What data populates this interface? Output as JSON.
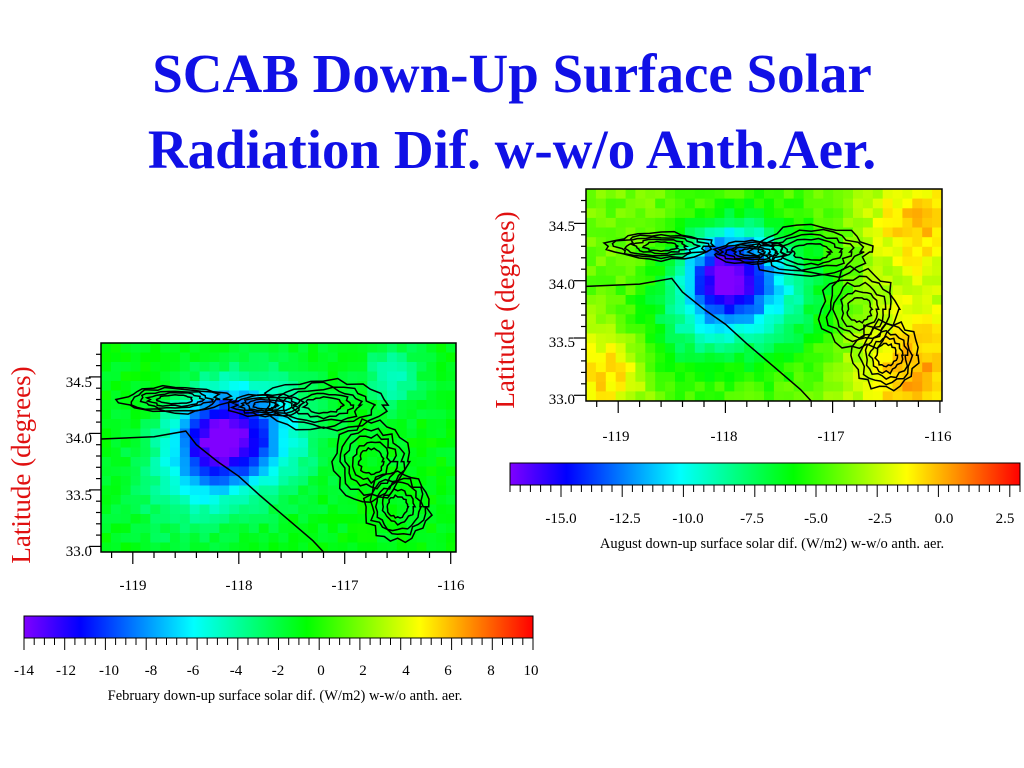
{
  "slide": {
    "title_line1": "SCAB Down-Up Surface Solar",
    "title_line2": "Radiation Dif. w-w/o Anth.Aer."
  },
  "chart_data": [
    {
      "type": "heatmap",
      "name": "february-map",
      "ylabel": "Latitude (degrees)",
      "xlabel": "",
      "xlim": [
        -119.3,
        -115.95
      ],
      "ylim": [
        32.95,
        34.8
      ],
      "x_ticks": [
        -119,
        -118,
        -117,
        -116
      ],
      "x_tick_labels": [
        "-119",
        "-118",
        "-117",
        "-116"
      ],
      "y_ticks": [
        33.0,
        33.5,
        34.0,
        34.5
      ],
      "y_tick_labels": [
        "33.0",
        "33.5",
        "34.0",
        "34.5"
      ],
      "overlay": "terrain contour lines",
      "colorbar": {
        "label": "February down-up surface solar dif. (W/m2) w-w/o anth. aer.",
        "range": [
          -14,
          10
        ],
        "ticks": [
          -14,
          -12,
          -10,
          -8,
          -6,
          -4,
          -2,
          0,
          2,
          4,
          6,
          8,
          10
        ],
        "tick_labels": [
          "-14",
          "-12",
          "-10",
          "-8",
          "-6",
          "-4",
          "-2",
          "0",
          "2",
          "4",
          "6",
          "8",
          "10"
        ]
      },
      "field": {
        "background": -1,
        "features": [
          {
            "lon": -118.2,
            "lat": 33.95,
            "value": -11,
            "radius": 0.4
          },
          {
            "lon": -117.8,
            "lat": 34.0,
            "value": -7,
            "radius": 0.5
          },
          {
            "lon": -118.5,
            "lat": 33.55,
            "value": -4,
            "radius": 0.5
          },
          {
            "lon": -116.55,
            "lat": 34.5,
            "value": -5,
            "radius": 0.25
          }
        ]
      }
    },
    {
      "type": "heatmap",
      "name": "august-map",
      "ylabel": "Latitude (degrees)",
      "xlabel": "",
      "xlim": [
        -119.3,
        -115.98
      ],
      "ylim": [
        32.95,
        34.8
      ],
      "x_ticks": [
        -119,
        -118,
        -117,
        -116
      ],
      "x_tick_labels": [
        "-119",
        "-118",
        "-117",
        "-116"
      ],
      "y_ticks": [
        33.0,
        33.5,
        34.0,
        34.5
      ],
      "y_tick_labels": [
        "33.0",
        "33.5",
        "34.0",
        "34.5"
      ],
      "overlay": "terrain contour lines",
      "colorbar": {
        "label": "August down-up surface solar dif. (W/m2) w-w/o anth. aer.",
        "range": [
          -17,
          3
        ],
        "ticks": [
          -15.0,
          -12.5,
          -10.0,
          -7.5,
          -5.0,
          -2.5,
          0.0,
          2.5
        ],
        "tick_labels": [
          "-15.0",
          "-12.5",
          "-10.0",
          "-7.5",
          "-5.0",
          "-2.5",
          "0.0",
          "2.5"
        ]
      },
      "field": {
        "background": -4,
        "features": [
          {
            "lon": -118.0,
            "lat": 34.05,
            "value": -14,
            "radius": 0.4
          },
          {
            "lon": -117.6,
            "lat": 33.9,
            "value": -9,
            "radius": 0.6
          },
          {
            "lon": -118.4,
            "lat": 33.6,
            "value": -7,
            "radius": 0.5
          },
          {
            "lon": -116.2,
            "lat": 33.2,
            "value": 0,
            "radius": 0.6
          },
          {
            "lon": -119.1,
            "lat": 33.2,
            "value": -0.5,
            "radius": 0.4
          },
          {
            "lon": -116.2,
            "lat": 34.5,
            "value": -0.5,
            "radius": 0.5
          }
        ]
      }
    }
  ],
  "colors": {
    "title": "#1010e6",
    "ylabel": "#e01010",
    "colormap": [
      "#8000ff",
      "#0000ff",
      "#0080ff",
      "#00ffff",
      "#00ff80",
      "#00ff00",
      "#80ff00",
      "#ffff00",
      "#ff8000",
      "#ff0000"
    ]
  }
}
